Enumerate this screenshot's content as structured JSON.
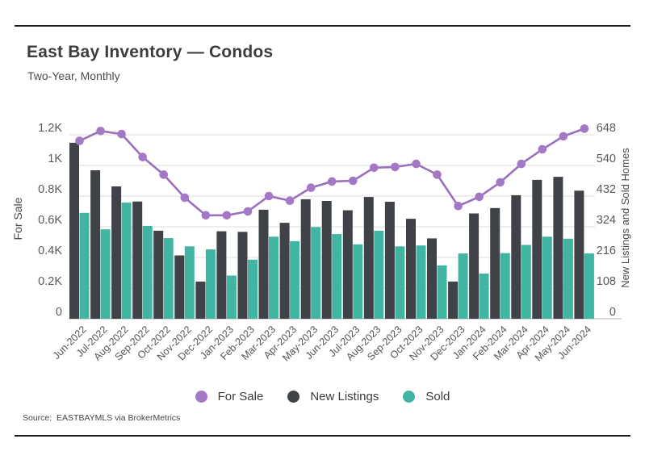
{
  "header": {
    "title": "East Bay Inventory — Condos",
    "subtitle": "Two-Year, Monthly"
  },
  "source_note": "Source:  EASTBAYMLS via BrokerMetrics",
  "legend": {
    "items": [
      {
        "label": "For Sale",
        "color": "#a379c6"
      },
      {
        "label": "New Listings",
        "color": "#3f4347"
      },
      {
        "label": "Sold",
        "color": "#41b4a2"
      }
    ]
  },
  "colors": {
    "line": "#9a6fbc",
    "marker": "#a379c6",
    "new_listings_bar": "#3f4347",
    "sold_bar": "#41b4a2",
    "gridline": "#dedede",
    "baseline": "#c4c4c4",
    "tick_text": "#58595b",
    "axis_title_text": "#4a4a4a"
  },
  "chart_data": {
    "type": "combo",
    "categories": [
      "Jun-2022",
      "Jul-2022",
      "Aug-2022",
      "Sep-2022",
      "Oct-2022",
      "Nov-2022",
      "Dec-2022",
      "Jan-2023",
      "Feb-2023",
      "Mar-2023",
      "Apr-2023",
      "May-2023",
      "Jun-2023",
      "Jul-2023",
      "Aug-2023",
      "Sep-2023",
      "Oct-2023",
      "Nov-2023",
      "Dec-2023",
      "Jan-2024",
      "Feb-2024",
      "Mar-2024",
      "Apr-2024",
      "May-2024",
      "Jun-2024"
    ],
    "series": [
      {
        "name": "For Sale",
        "type": "line",
        "axis": "left",
        "values": [
          1160,
          1225,
          1205,
          1055,
          940,
          790,
          675,
          675,
          700,
          800,
          770,
          855,
          895,
          900,
          985,
          990,
          1010,
          940,
          735,
          795,
          890,
          1010,
          1105,
          1190,
          1240
        ]
      },
      {
        "name": "New Listings",
        "type": "bar",
        "axis": "right",
        "values": [
          620,
          523,
          466,
          413,
          310,
          223,
          131,
          308,
          306,
          384,
          338,
          421,
          415,
          382,
          429,
          412,
          352,
          283,
          131,
          371,
          390,
          435,
          489,
          500,
          451
        ]
      },
      {
        "name": "Sold",
        "type": "bar",
        "axis": "right",
        "values": [
          373,
          315,
          409,
          327,
          284,
          255,
          244,
          152,
          208,
          289,
          273,
          323,
          298,
          262,
          310,
          255,
          258,
          188,
          230,
          159,
          231,
          260,
          289,
          282,
          230
        ]
      }
    ],
    "left_axis": {
      "label": "For Sale",
      "range": [
        0,
        1200
      ],
      "tick_values": [
        0,
        200,
        400,
        600,
        800,
        1000,
        1200
      ],
      "tick_labels": [
        "0",
        "0.2K",
        "0.4K",
        "0.6K",
        "0.8K",
        "1K",
        "1.2K"
      ]
    },
    "right_axis": {
      "label": "New Listings and Sold Homes",
      "range": [
        0,
        648
      ],
      "tick_values": [
        0,
        108,
        216,
        324,
        432,
        540,
        648
      ],
      "tick_labels": [
        "0",
        "108",
        "216",
        "324",
        "432",
        "540",
        "648"
      ]
    },
    "grid": true,
    "legend_position": "bottom"
  }
}
